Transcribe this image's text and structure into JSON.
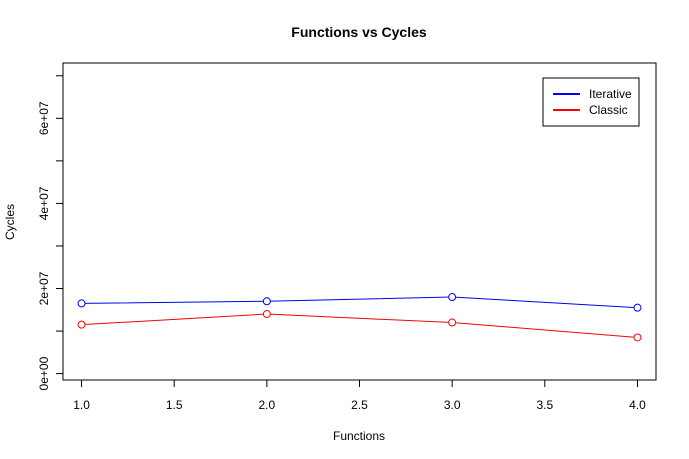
{
  "chart_data": {
    "type": "line",
    "title": "Functions vs Cycles",
    "xlabel": "Functions",
    "ylabel": "Cycles",
    "xlim": [
      0.9,
      4.1
    ],
    "ylim": [
      -1500000,
      73000000
    ],
    "x_ticks": [
      1.0,
      1.5,
      2.0,
      2.5,
      3.0,
      3.5,
      4.0
    ],
    "x_tick_labels": [
      "1.0",
      "1.5",
      "2.0",
      "2.5",
      "3.0",
      "3.5",
      "4.0"
    ],
    "y_ticks": [
      0,
      10000000,
      20000000,
      30000000,
      40000000,
      50000000,
      60000000,
      70000000
    ],
    "y_tick_labels": [
      "0e+00",
      "",
      "2e+07",
      "",
      "4e+07",
      "",
      "6e+07",
      ""
    ],
    "x": [
      1,
      2,
      3,
      4
    ],
    "series": [
      {
        "name": "Iterative",
        "color": "#0000ff",
        "values": [
          16500000,
          17000000,
          18000000,
          15500000
        ]
      },
      {
        "name": "Classic",
        "color": "#ff0000",
        "values": [
          11500000,
          14000000,
          12000000,
          8500000
        ]
      }
    ],
    "legend_position": "top-right",
    "grid": false,
    "marker": "open-circle"
  }
}
